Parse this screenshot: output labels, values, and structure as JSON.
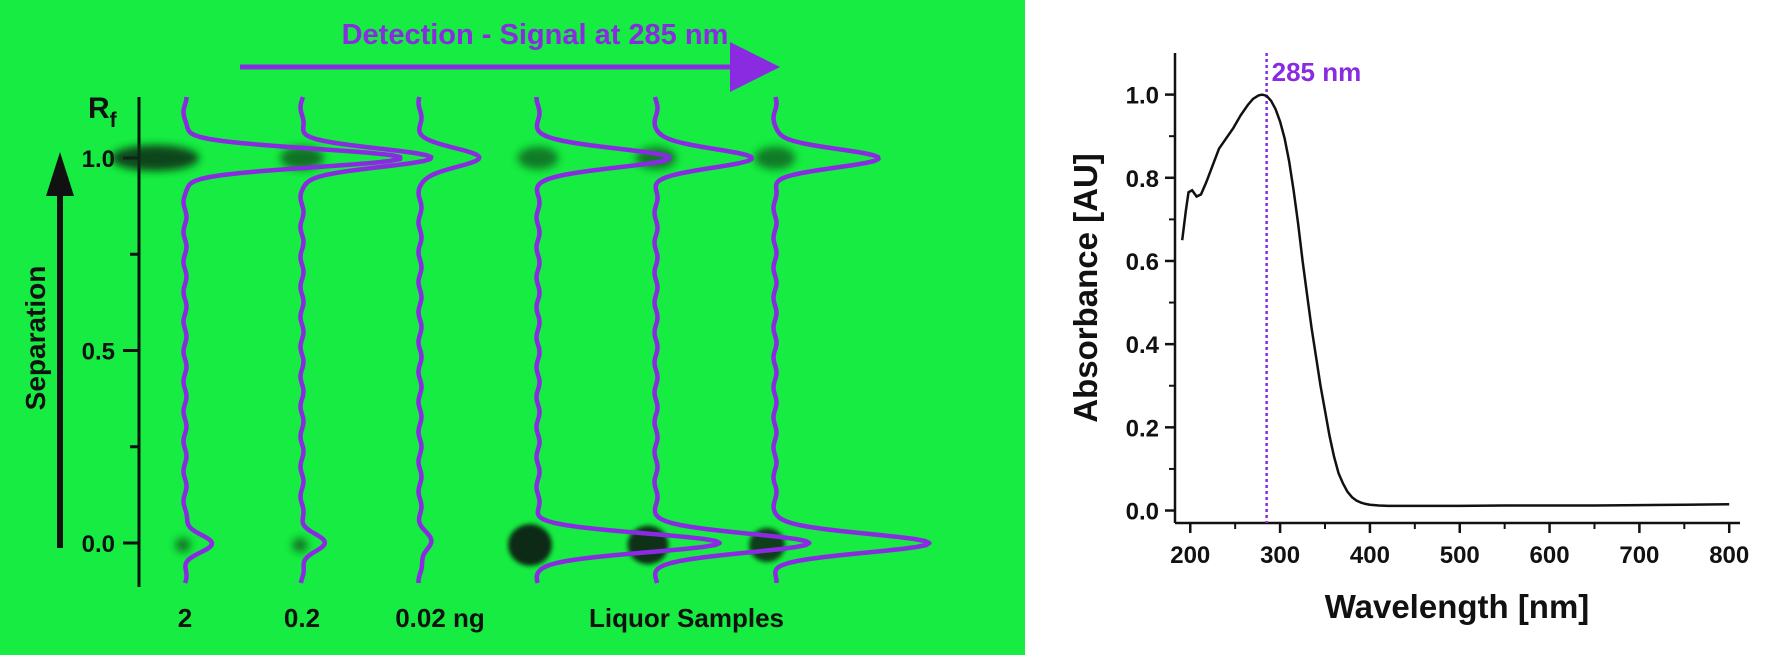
{
  "chart_data": [
    {
      "type": "line",
      "panel": "tlc-plate",
      "title": "Detection - Signal at 285 nm",
      "ylabel": "R",
      "ylabel_sub": "f",
      "ylim": [
        -0.1,
        1.15
      ],
      "y_ticks": [
        {
          "value": 0.0,
          "label": "0.0"
        },
        {
          "value": 0.5,
          "label": "0.5"
        },
        {
          "value": 1.0,
          "label": "1.0"
        }
      ],
      "y_minor_ticks": [
        0.25,
        0.75
      ],
      "separation_label": "Separation",
      "lane_labels": [
        {
          "text": "2",
          "center_lane": 0
        },
        {
          "text": "0.2",
          "center_lane": 1
        },
        {
          "text": "0.02 ng",
          "center_lane": 2
        },
        {
          "text": "Liquor Samples",
          "center_lane": 4
        }
      ],
      "lanes": [
        {
          "peak_top": 1.0,
          "peak_bottom": 0.0,
          "intensity_top": 1.0,
          "intensity_bottom": 0.12,
          "spot_top": 1.0,
          "spot_bottom": 0.1
        },
        {
          "peak_top": 1.0,
          "peak_bottom": 0.0,
          "intensity_top": 0.6,
          "intensity_bottom": 0.1,
          "spot_top": 0.55,
          "spot_bottom": 0.1
        },
        {
          "peak_top": 1.0,
          "peak_bottom": 0.0,
          "intensity_top": 0.28,
          "intensity_bottom": 0.05,
          "spot_top": 0.0,
          "spot_bottom": 0.0
        },
        {
          "peak_top": 1.0,
          "peak_bottom": 0.0,
          "intensity_top": 0.62,
          "intensity_bottom": 0.85,
          "spot_top": 0.45,
          "spot_bottom": 1.0
        },
        {
          "peak_top": 1.0,
          "peak_bottom": 0.0,
          "intensity_top": 0.45,
          "intensity_bottom": 0.72,
          "spot_top": 0.45,
          "spot_bottom": 0.9
        },
        {
          "peak_top": 1.0,
          "peak_bottom": 0.0,
          "intensity_top": 0.48,
          "intensity_bottom": 0.72,
          "spot_top": 0.45,
          "spot_bottom": 0.75
        }
      ]
    },
    {
      "type": "line",
      "panel": "uv-spectrum",
      "title": "",
      "xlabel": "Wavelength [nm]",
      "ylabel": "Absorbance [AU]",
      "xlim": [
        183,
        812
      ],
      "ylim": [
        -0.03,
        1.1
      ],
      "x_ticks": [
        200,
        300,
        400,
        500,
        600,
        700,
        800
      ],
      "y_ticks": [
        0.0,
        0.2,
        0.4,
        0.6,
        0.8,
        1.0
      ],
      "marker": {
        "x": 285,
        "label": "285 nm"
      },
      "series": [
        {
          "x": [
            191,
            195,
            198,
            202,
            207,
            212,
            218,
            225,
            232,
            240,
            248,
            256,
            264,
            270,
            276,
            280,
            285,
            290,
            295,
            300,
            305,
            310,
            315,
            320,
            325,
            330,
            335,
            340,
            345,
            350,
            355,
            360,
            365,
            370,
            375,
            380,
            385,
            390,
            395,
            400,
            410,
            420,
            440,
            470,
            500,
            550,
            600,
            650,
            700,
            750,
            800
          ],
          "y": [
            0.65,
            0.72,
            0.765,
            0.77,
            0.755,
            0.76,
            0.79,
            0.83,
            0.87,
            0.895,
            0.92,
            0.95,
            0.975,
            0.99,
            0.998,
            1.0,
            0.997,
            0.985,
            0.965,
            0.935,
            0.895,
            0.84,
            0.77,
            0.69,
            0.6,
            0.52,
            0.44,
            0.37,
            0.3,
            0.24,
            0.18,
            0.13,
            0.09,
            0.065,
            0.045,
            0.032,
            0.024,
            0.019,
            0.016,
            0.014,
            0.012,
            0.011,
            0.011,
            0.011,
            0.011,
            0.012,
            0.012,
            0.012,
            0.013,
            0.014,
            0.015
          ]
        }
      ]
    }
  ],
  "colors": {
    "plate_green": "#16ec41",
    "signal_purple": "#8a2be2",
    "spot_dark": "#0d2b12",
    "marker_purple": "#8a2be2",
    "ink": "#111111"
  }
}
